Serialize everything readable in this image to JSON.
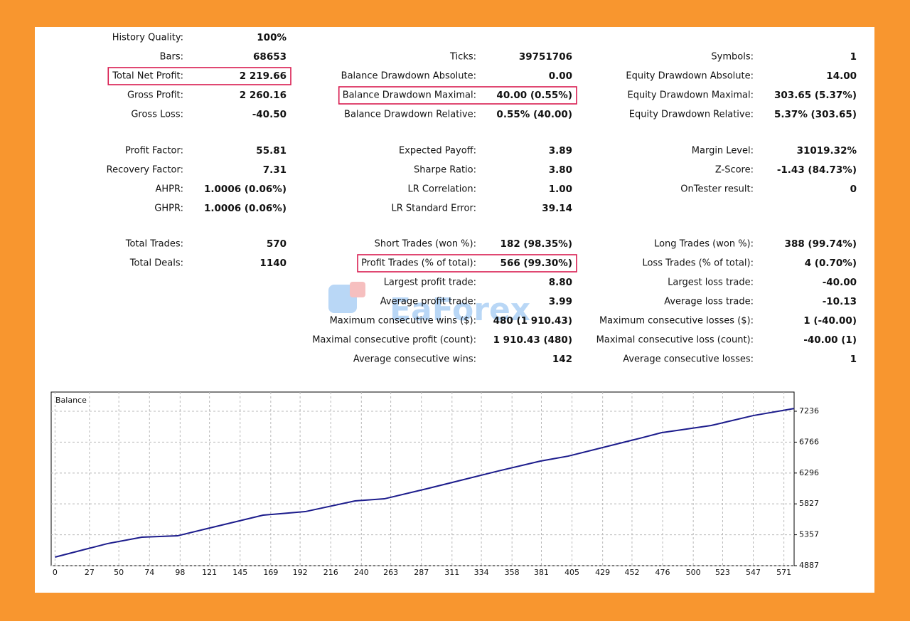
{
  "report": {
    "watermark": "EaForex",
    "sections": [
      {
        "rows": [
          [
            {
              "label": "History Quality:",
              "value": "100%"
            },
            null,
            null
          ],
          [
            {
              "label": "Bars:",
              "value": "68653"
            },
            {
              "label": "Ticks:",
              "value": "39751706"
            },
            {
              "label": "Symbols:",
              "value": "1"
            }
          ],
          [
            {
              "label": "Total Net Profit:",
              "value": "2 219.66",
              "highlight": true
            },
            {
              "label": "Balance Drawdown Absolute:",
              "value": "0.00"
            },
            {
              "label": "Equity Drawdown Absolute:",
              "value": "14.00"
            }
          ],
          [
            {
              "label": "Gross Profit:",
              "value": "2 260.16"
            },
            {
              "label": "Balance Drawdown Maximal:",
              "value": "40.00 (0.55%)",
              "highlight": true
            },
            {
              "label": "Equity Drawdown Maximal:",
              "value": "303.65 (5.37%)"
            }
          ],
          [
            {
              "label": "Gross Loss:",
              "value": "-40.50"
            },
            {
              "label": "Balance Drawdown Relative:",
              "value": "0.55% (40.00)"
            },
            {
              "label": "Equity Drawdown Relative:",
              "value": "5.37% (303.65)"
            }
          ]
        ]
      },
      {
        "rows": [
          [
            {
              "label": "Profit Factor:",
              "value": "55.81"
            },
            {
              "label": "Expected Payoff:",
              "value": "3.89"
            },
            {
              "label": "Margin Level:",
              "value": "31019.32%"
            }
          ],
          [
            {
              "label": "Recovery Factor:",
              "value": "7.31"
            },
            {
              "label": "Sharpe Ratio:",
              "value": "3.80"
            },
            {
              "label": "Z-Score:",
              "value": "-1.43 (84.73%)"
            }
          ],
          [
            {
              "label": "AHPR:",
              "value": "1.0006 (0.06%)"
            },
            {
              "label": "LR Correlation:",
              "value": "1.00"
            },
            {
              "label": "OnTester result:",
              "value": "0"
            }
          ],
          [
            {
              "label": "GHPR:",
              "value": "1.0006 (0.06%)"
            },
            {
              "label": "LR Standard Error:",
              "value": "39.14"
            },
            null
          ]
        ]
      },
      {
        "rows": [
          [
            {
              "label": "Total Trades:",
              "value": "570"
            },
            {
              "label": "Short Trades (won %):",
              "value": "182 (98.35%)"
            },
            {
              "label": "Long Trades (won %):",
              "value": "388 (99.74%)"
            }
          ],
          [
            {
              "label": "Total Deals:",
              "value": "1140"
            },
            {
              "label": "Profit Trades (% of total):",
              "value": "566 (99.30%)",
              "highlight": true
            },
            {
              "label": "Loss Trades (% of total):",
              "value": "4 (0.70%)"
            }
          ],
          [
            null,
            {
              "label": "Largest profit trade:",
              "value": "8.80"
            },
            {
              "label": "Largest loss trade:",
              "value": "-40.00"
            }
          ],
          [
            null,
            {
              "label": "Average profit trade:",
              "value": "3.99"
            },
            {
              "label": "Average loss trade:",
              "value": "-10.13"
            }
          ],
          [
            null,
            {
              "label": "Maximum consecutive wins ($):",
              "value": "480 (1 910.43)"
            },
            {
              "label": "Maximum consecutive losses ($):",
              "value": "1 (-40.00)"
            }
          ],
          [
            null,
            {
              "label": "Maximal consecutive profit (count):",
              "value": "1 910.43 (480)"
            },
            {
              "label": "Maximal consecutive loss (count):",
              "value": "-40.00 (1)"
            }
          ],
          [
            null,
            {
              "label": "Average consecutive wins:",
              "value": "142"
            },
            {
              "label": "Average consecutive losses:",
              "value": "1"
            }
          ]
        ]
      }
    ]
  },
  "chart_data": {
    "type": "line",
    "x": [
      0,
      41,
      68,
      96,
      119,
      163,
      196,
      235,
      258,
      291,
      347,
      380,
      402,
      458,
      475,
      491,
      514,
      547,
      579
    ],
    "series": [
      {
        "name": "Balance",
        "color": "#1c1c8c",
        "values": [
          5017,
          5222,
          5320,
          5341,
          5450,
          5655,
          5709,
          5872,
          5904,
          6056,
          6326,
          6477,
          6553,
          6824,
          6910,
          6954,
          7019,
          7170,
          7278
        ]
      }
    ],
    "xlim": [
      -3,
      579
    ],
    "ylim": [
      4887,
      7528
    ],
    "xticks": [
      0,
      27,
      50,
      74,
      98,
      121,
      145,
      169,
      192,
      216,
      240,
      263,
      287,
      311,
      334,
      358,
      381,
      405,
      429,
      452,
      476,
      500,
      523,
      547,
      571
    ],
    "yticks": [
      4887,
      5357,
      5827,
      6296,
      6766,
      7236
    ],
    "grid": true
  }
}
